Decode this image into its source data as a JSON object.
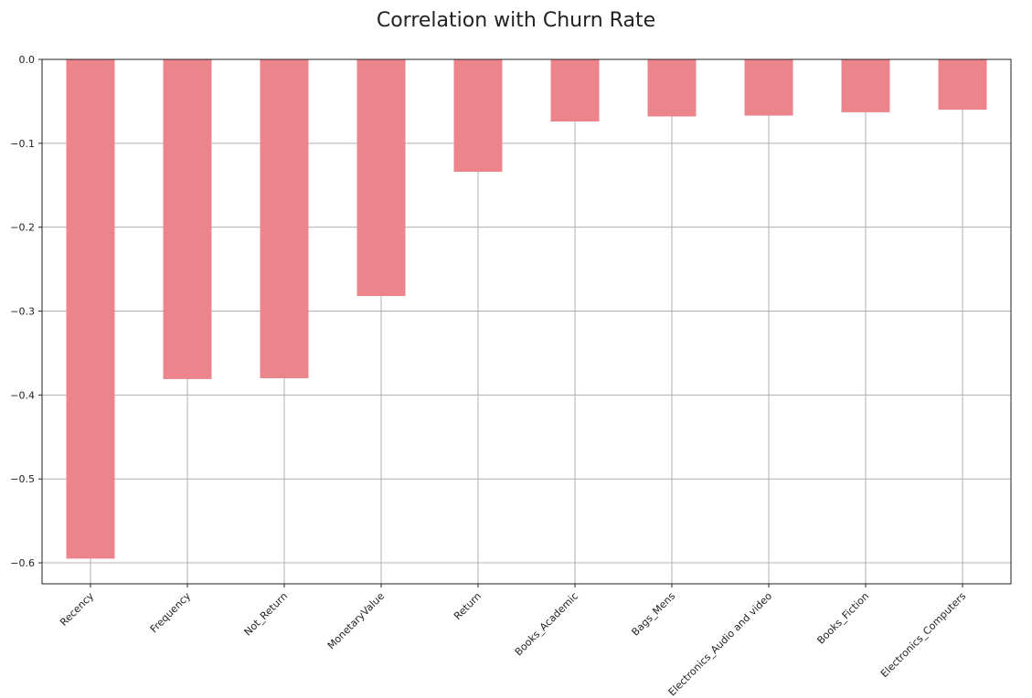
{
  "chart_data": {
    "type": "bar",
    "title": "Correlation with Churn Rate",
    "xlabel": "",
    "ylabel": "",
    "categories": [
      "Recency",
      "Frequency",
      "Not_Return",
      "MonetaryValue",
      "Return",
      "Books_Academic",
      "Bags_Mens",
      "Electronics_Audio and video",
      "Books_Fiction",
      "Electronics_Computers"
    ],
    "values": [
      -0.595,
      -0.381,
      -0.38,
      -0.282,
      -0.134,
      -0.074,
      -0.068,
      -0.067,
      -0.063,
      -0.06
    ],
    "ylim": [
      -0.625,
      0.0
    ],
    "yticks": [
      0.0,
      -0.1,
      -0.2,
      -0.3,
      -0.4,
      -0.5,
      -0.6
    ],
    "ytick_labels": [
      "0.0",
      "−0.1",
      "−0.2",
      "−0.3",
      "−0.4",
      "−0.5",
      "−0.6"
    ],
    "grid": true,
    "bar_color": "#ec848c"
  }
}
